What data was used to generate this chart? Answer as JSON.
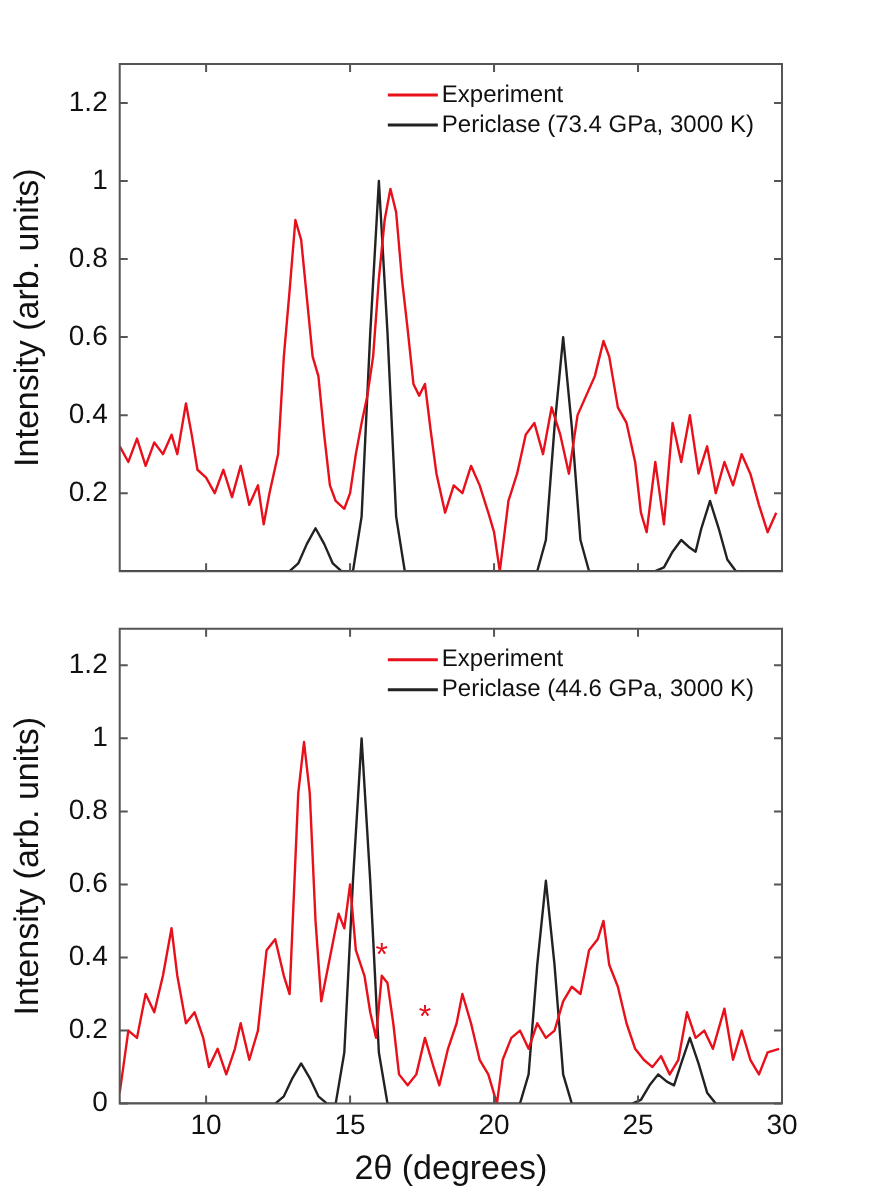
{
  "chart_data": [
    {
      "type": "line",
      "ylabel": "Intensity (arb. units)",
      "xlim": [
        7,
        30
      ],
      "xticks": [
        10,
        15,
        20,
        25,
        30
      ],
      "ylim": [
        0,
        1.3
      ],
      "yticks": [
        0.2,
        0.4,
        0.6,
        0.8,
        1,
        1.2
      ],
      "tick_labels": "y",
      "grid": false,
      "legend": "top right",
      "marker": "none",
      "line_style": "solid",
      "series": [
        {
          "name": "Experiment",
          "color": "#e8101a",
          "x": [
            7.0,
            7.3,
            7.6,
            7.9,
            8.2,
            8.5,
            8.8,
            9.0,
            9.3,
            9.5,
            9.7,
            10.0,
            10.3,
            10.6,
            10.9,
            11.2,
            11.5,
            11.8,
            12.0,
            12.2,
            12.5,
            12.7,
            12.9,
            13.1,
            13.3,
            13.5,
            13.7,
            13.9,
            14.1,
            14.3,
            14.5,
            14.8,
            15.0,
            15.2,
            15.4,
            15.6,
            15.8,
            16.0,
            16.2,
            16.4,
            16.6,
            16.8,
            17.0,
            17.2,
            17.4,
            17.6,
            17.8,
            18.0,
            18.3,
            18.6,
            18.9,
            19.2,
            19.5,
            19.8,
            20.0,
            20.2,
            20.5,
            20.8,
            21.1,
            21.4,
            21.7,
            22.0,
            22.3,
            22.6,
            22.9,
            23.2,
            23.5,
            23.8,
            24.0,
            24.3,
            24.6,
            24.9,
            25.1,
            25.3,
            25.6,
            25.9,
            26.2,
            26.5,
            26.8,
            27.1,
            27.4,
            27.7,
            28.0,
            28.3,
            28.6,
            28.9,
            29.2,
            29.5,
            29.8
          ],
          "values": [
            0.32,
            0.28,
            0.34,
            0.27,
            0.33,
            0.3,
            0.35,
            0.3,
            0.43,
            0.35,
            0.26,
            0.24,
            0.2,
            0.26,
            0.19,
            0.27,
            0.17,
            0.22,
            0.12,
            0.2,
            0.3,
            0.55,
            0.72,
            0.9,
            0.85,
            0.7,
            0.55,
            0.5,
            0.35,
            0.22,
            0.18,
            0.16,
            0.2,
            0.3,
            0.38,
            0.45,
            0.55,
            0.75,
            0.9,
            0.98,
            0.92,
            0.75,
            0.62,
            0.48,
            0.45,
            0.48,
            0.36,
            0.25,
            0.15,
            0.22,
            0.2,
            0.27,
            0.22,
            0.15,
            0.1,
            0.0,
            0.18,
            0.25,
            0.35,
            0.38,
            0.3,
            0.42,
            0.35,
            0.25,
            0.4,
            0.45,
            0.5,
            0.59,
            0.55,
            0.42,
            0.38,
            0.28,
            0.15,
            0.1,
            0.28,
            0.12,
            0.38,
            0.28,
            0.4,
            0.25,
            0.32,
            0.2,
            0.28,
            0.22,
            0.3,
            0.25,
            0.17,
            0.1,
            0.15
          ]
        },
        {
          "name": "Periclase (73.4 GPa, 3000 K)",
          "color": "#222222",
          "x": [
            7,
            12.9,
            13.2,
            13.5,
            13.8,
            14.1,
            14.4,
            14.7,
            15.1,
            15.4,
            15.7,
            16.0,
            16.3,
            16.6,
            16.9,
            21.5,
            21.8,
            22.1,
            22.4,
            22.7,
            23.0,
            23.3,
            25.6,
            25.9,
            26.2,
            26.5,
            26.8,
            27.0,
            27.2,
            27.5,
            27.8,
            28.1,
            28.4,
            30
          ],
          "values": [
            0,
            0,
            0.02,
            0.07,
            0.11,
            0.07,
            0.02,
            0,
            0,
            0.14,
            0.61,
            1,
            0.61,
            0.14,
            0,
            0,
            0.08,
            0.37,
            0.6,
            0.37,
            0.08,
            0,
            0,
            0.01,
            0.05,
            0.08,
            0.06,
            0.05,
            0.11,
            0.18,
            0.11,
            0.03,
            0,
            0
          ]
        }
      ]
    },
    {
      "type": "line",
      "xlabel": "2θ (degrees)",
      "ylabel": "Intensity (arb. units)",
      "xlim": [
        7,
        30
      ],
      "xticks": [
        10,
        15,
        20,
        25,
        30
      ],
      "ylim": [
        0,
        1.3
      ],
      "yticks": [
        0,
        0.2,
        0.4,
        0.6,
        0.8,
        1,
        1.2
      ],
      "grid": false,
      "legend": "top right",
      "marker": "none",
      "line_style": "solid",
      "annotations": [
        {
          "text": "*",
          "x": 16.1,
          "y": 0.35
        },
        {
          "text": "*",
          "x": 17.6,
          "y": 0.18
        }
      ],
      "series": [
        {
          "name": "Experiment",
          "color": "#e8101a",
          "x": [
            7.0,
            7.3,
            7.6,
            7.9,
            8.2,
            8.5,
            8.8,
            9.0,
            9.3,
            9.6,
            9.9,
            10.1,
            10.4,
            10.7,
            11.0,
            11.2,
            11.5,
            11.8,
            12.1,
            12.4,
            12.7,
            12.9,
            13.2,
            13.4,
            13.6,
            13.8,
            14.0,
            14.3,
            14.6,
            14.8,
            15.0,
            15.2,
            15.5,
            15.7,
            15.9,
            16.1,
            16.3,
            16.5,
            16.7,
            17.0,
            17.3,
            17.6,
            17.9,
            18.1,
            18.4,
            18.7,
            18.9,
            19.2,
            19.5,
            19.8,
            20.1,
            20.3,
            20.6,
            20.9,
            21.2,
            21.5,
            21.8,
            22.1,
            22.4,
            22.7,
            23.0,
            23.3,
            23.6,
            23.8,
            24.0,
            24.3,
            24.6,
            24.9,
            25.2,
            25.5,
            25.8,
            26.1,
            26.4,
            26.7,
            27.0,
            27.3,
            27.6,
            28.0,
            28.3,
            28.6,
            28.9,
            29.2,
            29.5,
            29.9
          ],
          "values": [
            0.03,
            0.2,
            0.18,
            0.3,
            0.25,
            0.35,
            0.48,
            0.35,
            0.22,
            0.25,
            0.18,
            0.1,
            0.15,
            0.08,
            0.15,
            0.22,
            0.12,
            0.2,
            0.42,
            0.45,
            0.35,
            0.3,
            0.85,
            0.99,
            0.85,
            0.5,
            0.28,
            0.4,
            0.52,
            0.48,
            0.6,
            0.42,
            0.35,
            0.25,
            0.18,
            0.35,
            0.33,
            0.22,
            0.08,
            0.05,
            0.08,
            0.18,
            0.1,
            0.05,
            0.15,
            0.22,
            0.3,
            0.22,
            0.12,
            0.08,
            0.0,
            0.12,
            0.18,
            0.2,
            0.15,
            0.22,
            0.18,
            0.2,
            0.28,
            0.32,
            0.3,
            0.42,
            0.45,
            0.5,
            0.38,
            0.32,
            0.22,
            0.15,
            0.12,
            0.1,
            0.13,
            0.08,
            0.12,
            0.25,
            0.18,
            0.2,
            0.15,
            0.26,
            0.12,
            0.2,
            0.12,
            0.08,
            0.14,
            0.15
          ]
        },
        {
          "name": "Periclase (44.6 GPa, 3000 K)",
          "color": "#222222",
          "x": [
            7,
            12.4,
            12.7,
            13.0,
            13.3,
            13.6,
            13.9,
            14.2,
            14.5,
            14.8,
            15.1,
            15.4,
            15.7,
            16.0,
            16.3,
            20.9,
            21.2,
            21.5,
            21.8,
            22.1,
            22.4,
            22.7,
            24.8,
            25.1,
            25.4,
            25.7,
            26.0,
            26.25,
            26.5,
            26.8,
            27.1,
            27.4,
            27.7,
            30
          ],
          "values": [
            0,
            0,
            0.02,
            0.07,
            0.11,
            0.07,
            0.02,
            0,
            0,
            0.14,
            0.61,
            1,
            0.61,
            0.14,
            0,
            0,
            0.08,
            0.38,
            0.61,
            0.38,
            0.08,
            0,
            0,
            0.01,
            0.05,
            0.08,
            0.06,
            0.05,
            0.11,
            0.18,
            0.11,
            0.03,
            0,
            0
          ]
        }
      ]
    }
  ]
}
